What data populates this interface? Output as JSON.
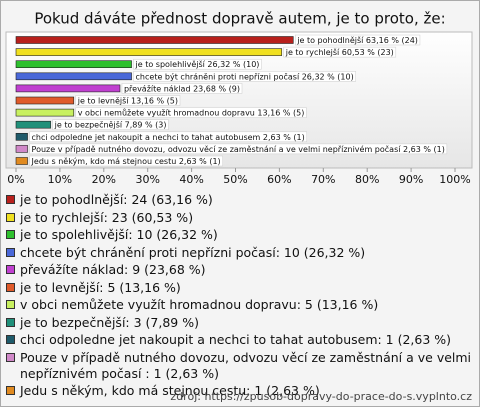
{
  "chart_data": {
    "type": "barh",
    "title": "Pokud dáváte přednost dopravě autem, je to proto, že:",
    "categories": [
      "je to pohodlnější",
      "je to rychlejší",
      "je to spolehlivější",
      "chcete být chráněni proti nepřízni počasí",
      "převážíte náklad",
      "je to levnější",
      "v obci nemůžete využít hromadnou dopravu",
      "je to bezpečnější",
      "chci odpoledne jet nakoupit a nechci to tahat autobusem",
      "Pouze v případě nutného dovozu, odvozu věcí ze zaměstnání a ve velmi nepříznivém počasí",
      "Jedu s někým, kdo má stejnou cestu"
    ],
    "values": [
      63.16,
      60.53,
      26.32,
      26.32,
      23.68,
      13.16,
      13.16,
      7.89,
      2.63,
      2.63,
      2.63
    ],
    "value_labels": [
      "je to pohodlnější 63,16 % (24)",
      "je to rychlejší 60,53 % (23)",
      "je to spolehlivější 26,32 % (10)",
      "chcete být chráněni proti nepřízni počasí 26,32 % (10)",
      "převážíte náklad 23,68 % (9)",
      "je to levnější 13,16 % (5)",
      "v obci nemůžete využít hromadnou dopravu 13,16 % (5)",
      "je to bezpečnější 7,89 % (3)",
      "chci odpoledne jet nakoupit a nechci to tahat autobusem 2,63 % (1)",
      "Pouze v případě nutného dovozu, odvozu věcí ze zaměstnání a ve velmi nepříznivém počasí  2,63 % (1)",
      "Jedu s někým, kdo má stejnou cestu 2,63 % (1)"
    ],
    "legend_labels": [
      "je to pohodlnější: 24 (63,16 %)",
      "je to rychlejší: 23 (60,53 %)",
      "je to spolehlivější: 10 (26,32 %)",
      "chcete být chránění proti nepřízni počasí: 10 (26,32 %)",
      "převážíte náklad: 9 (23,68 %)",
      "je to levnější: 5 (13,16 %)",
      "v obci nemůžete využít hromadnou dopravu: 5 (13,16 %)",
      "je to bezpečnější: 3 (7,89 %)",
      "chci odpoledne jet nakoupit a nechci to tahat autobusem: 1 (2,63 %)",
      "Pouze v případě nutného dovozu, odvozu věcí ze zaměstnání a ve velmi nepříznivém počasí : 1 (2,63 %)",
      "Jedu s někým, kdo má stejnou cestu: 1 (2,63 %)"
    ],
    "colors": [
      "#b8201c",
      "#f0e020",
      "#2ec02e",
      "#4a68d8",
      "#c040d0",
      "#e05a2a",
      "#c8f060",
      "#20907a",
      "#1e5a6a",
      "#d088c8",
      "#e08a20"
    ],
    "xlim": [
      0,
      100
    ],
    "xticks": [
      {
        "value": 0,
        "label": "0%"
      },
      {
        "value": 10,
        "label": "10%"
      },
      {
        "value": 20,
        "label": "20%"
      },
      {
        "value": 30,
        "label": "30%"
      },
      {
        "value": 40,
        "label": "40%"
      },
      {
        "value": 50,
        "label": "50%"
      },
      {
        "value": 60,
        "label": "60%"
      },
      {
        "value": 70,
        "label": "70%"
      },
      {
        "value": 80,
        "label": "80%"
      },
      {
        "value": 90,
        "label": "90%"
      },
      {
        "value": 100,
        "label": "100%"
      }
    ],
    "grid": false,
    "source": "zdroj: https://zpusob-dopravy-do-prace-do-s.vyplnto.cz"
  }
}
